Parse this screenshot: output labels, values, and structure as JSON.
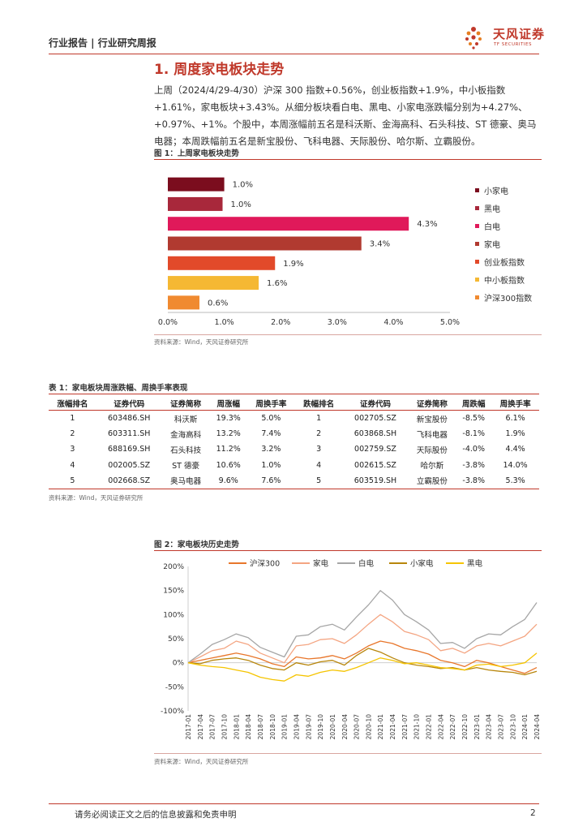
{
  "header": {
    "title": "行业报告 | 行业研究周报",
    "logo_name": "天风证券",
    "logo_sub": "TF SECURITIES"
  },
  "section": {
    "title": "1. 周度家电板块走势",
    "paragraph": "上周（2024/4/29-4/30）沪深 300 指数+0.56%，创业板指数+1.9%，中小板指数+1.61%，家电板块+3.43%。从细分板块看白电、黑电、小家电涨跌幅分别为+4.27%、+0.97%、+1%。个股中，本周涨幅前五名是科沃斯、金海高科、石头科技、ST 德豪、奥马电器；本周跌幅前五名是新宝股份、飞科电器、天际股份、哈尔斯、立霸股份。"
  },
  "figure1": {
    "title": "图 1：上周家电板块走势",
    "source": "资料来源：Wind，天风证券研究所",
    "chart_data": {
      "type": "bar",
      "orientation": "horizontal",
      "categories": [
        "小家电",
        "黑电",
        "白电",
        "家电",
        "创业板指数",
        "中小板指数",
        "沪深300指数"
      ],
      "values": [
        1.0,
        0.97,
        4.27,
        3.43,
        1.9,
        1.61,
        0.56
      ],
      "data_labels": [
        "1.0%",
        "1.0%",
        "4.3%",
        "3.4%",
        "1.9%",
        "1.6%",
        "0.6%"
      ],
      "colors": [
        "#7b0d1e",
        "#a8283b",
        "#e0195a",
        "#b13a30",
        "#e24a2a",
        "#f5b833",
        "#f08a30"
      ],
      "xlim": [
        0,
        5
      ],
      "x_ticks": [
        "0.0%",
        "1.0%",
        "2.0%",
        "3.0%",
        "4.0%",
        "5.0%"
      ],
      "legend_position": "right"
    }
  },
  "table1": {
    "title": "表 1：家电板块周涨跌幅、周换手率表现",
    "source": "资料来源：Wind，天风证券研究所",
    "headers": [
      "涨幅排名",
      "证券代码",
      "证券简称",
      "周涨幅",
      "周换手率",
      "跌幅排名",
      "证券代码",
      "证券简称",
      "周跌幅",
      "周换手率"
    ],
    "rows": [
      [
        "1",
        "603486.SH",
        "科沃斯",
        "19.3%",
        "5.0%",
        "1",
        "002705.SZ",
        "新宝股份",
        "-8.5%",
        "6.1%"
      ],
      [
        "2",
        "603311.SH",
        "金海高科",
        "13.2%",
        "7.4%",
        "2",
        "603868.SH",
        "飞科电器",
        "-8.1%",
        "1.9%"
      ],
      [
        "3",
        "688169.SH",
        "石头科技",
        "11.2%",
        "3.2%",
        "3",
        "002759.SZ",
        "天际股份",
        "-4.0%",
        "4.4%"
      ],
      [
        "4",
        "002005.SZ",
        "ST 德豪",
        "10.6%",
        "1.0%",
        "4",
        "002615.SZ",
        "哈尔斯",
        "-3.8%",
        "14.0%"
      ],
      [
        "5",
        "002668.SZ",
        "奥马电器",
        "9.6%",
        "7.6%",
        "5",
        "603519.SH",
        "立霸股份",
        "-3.8%",
        "5.3%"
      ]
    ]
  },
  "figure2": {
    "title": "图 2：家电板块历史走势",
    "source": "资料来源：Wind，天风证券研究所",
    "chart_data": {
      "type": "line",
      "ylim": [
        -100,
        200
      ],
      "y_ticks": [
        "200%",
        "150%",
        "100%",
        "50%",
        "0%",
        "-50%",
        "-100%"
      ],
      "x_ticks": [
        "2017-01",
        "2017-04",
        "2017-07",
        "2017-10",
        "2018-01",
        "2018-04",
        "2018-07",
        "2018-10",
        "2019-01",
        "2019-04",
        "2019-07",
        "2019-10",
        "2020-01",
        "2020-04",
        "2020-07",
        "2020-10",
        "2021-01",
        "2021-04",
        "2021-07",
        "2021-10",
        "2022-01",
        "2022-04",
        "2022-07",
        "2022-10",
        "2023-01",
        "2023-04",
        "2023-07",
        "2023-10",
        "2024-01",
        "2024-04"
      ],
      "legend_position": "top",
      "series": [
        {
          "name": "沪深300",
          "color": "#e8762b",
          "values": [
            0,
            5,
            10,
            15,
            20,
            15,
            8,
            -2,
            -8,
            12,
            8,
            10,
            15,
            8,
            20,
            35,
            45,
            40,
            30,
            25,
            18,
            5,
            0,
            -8,
            5,
            0,
            -8,
            -15,
            -22,
            -10
          ]
        },
        {
          "name": "家电",
          "color": "#f4a582",
          "values": [
            0,
            12,
            25,
            30,
            45,
            38,
            20,
            10,
            0,
            35,
            38,
            48,
            50,
            40,
            58,
            80,
            100,
            85,
            65,
            58,
            48,
            25,
            30,
            20,
            35,
            40,
            35,
            45,
            55,
            80
          ]
        },
        {
          "name": "白电",
          "color": "#a6a6a6",
          "values": [
            0,
            18,
            38,
            48,
            60,
            52,
            32,
            22,
            12,
            55,
            58,
            75,
            80,
            68,
            95,
            120,
            150,
            130,
            100,
            85,
            68,
            40,
            42,
            30,
            50,
            60,
            58,
            75,
            90,
            125
          ]
        },
        {
          "name": "小家电",
          "color": "#b8860b",
          "values": [
            0,
            -2,
            5,
            8,
            10,
            5,
            -5,
            -12,
            -15,
            0,
            -5,
            2,
            5,
            -5,
            15,
            30,
            22,
            10,
            0,
            -5,
            -8,
            -12,
            -10,
            -15,
            -10,
            -15,
            -18,
            -20,
            -25,
            -18
          ]
        },
        {
          "name": "黑电",
          "color": "#f5c400",
          "values": [
            0,
            -5,
            -8,
            -10,
            -15,
            -20,
            -30,
            -35,
            -38,
            -25,
            -28,
            -20,
            -15,
            -18,
            -10,
            0,
            10,
            5,
            -2,
            0,
            -5,
            -10,
            -12,
            -15,
            -5,
            -3,
            -8,
            -5,
            0,
            20
          ]
        }
      ]
    }
  },
  "footer": {
    "disclaimer": "请务必阅读正文之后的信息披露和免责申明",
    "page": "2"
  }
}
